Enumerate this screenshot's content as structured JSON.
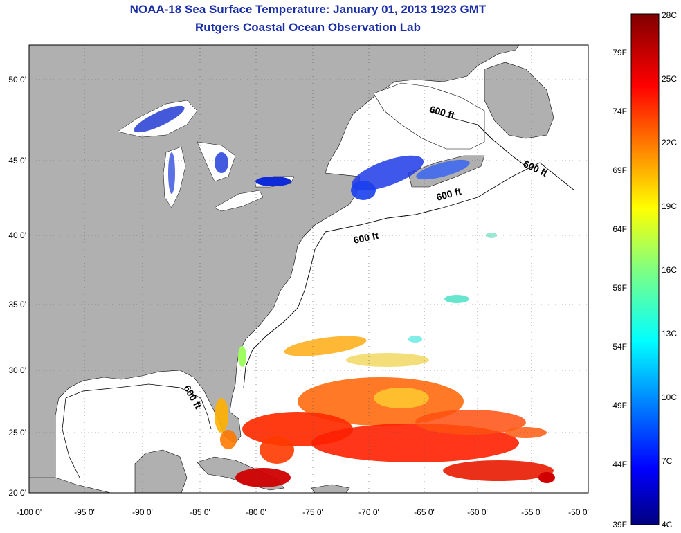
{
  "title_line1": "NOAA-18 Sea Surface Temperature:  January 01, 2013 1923 GMT",
  "title_line2": "Rutgers Coastal Ocean Observation Lab",
  "map": {
    "lon_range": [
      -100,
      -50
    ],
    "lat_range": [
      20,
      52.5
    ],
    "lon_ticks": [
      "-100 0'",
      "-95 0'",
      "-90 0'",
      "-85 0'",
      "-80 0'",
      "-75 0'",
      "-70 0'",
      "-65 0'",
      "-60 0'",
      "-55 0'",
      "-50 0'"
    ],
    "lat_ticks": [
      "20 0'",
      "25 0'",
      "30 0'",
      "35 0'",
      "40 0'",
      "45 0'",
      "50 0'"
    ],
    "contour_labels": [
      "600 ft",
      "600 ft",
      "600 ft",
      "600 ft",
      "600 ft"
    ],
    "colors": {
      "land": "#b0b0b0",
      "ocean": "#ffffff",
      "title": "#1a2ea8"
    }
  },
  "colorbar": {
    "celsius_labels": [
      "28C",
      "25C",
      "22C",
      "19C",
      "16C",
      "13C",
      "10C",
      "7C",
      "4C"
    ],
    "fahrenheit_labels": [
      "79F",
      "74F",
      "69F",
      "64F",
      "59F",
      "54F",
      "49F",
      "44F",
      "39F"
    ],
    "range_c": [
      4,
      28
    ]
  }
}
